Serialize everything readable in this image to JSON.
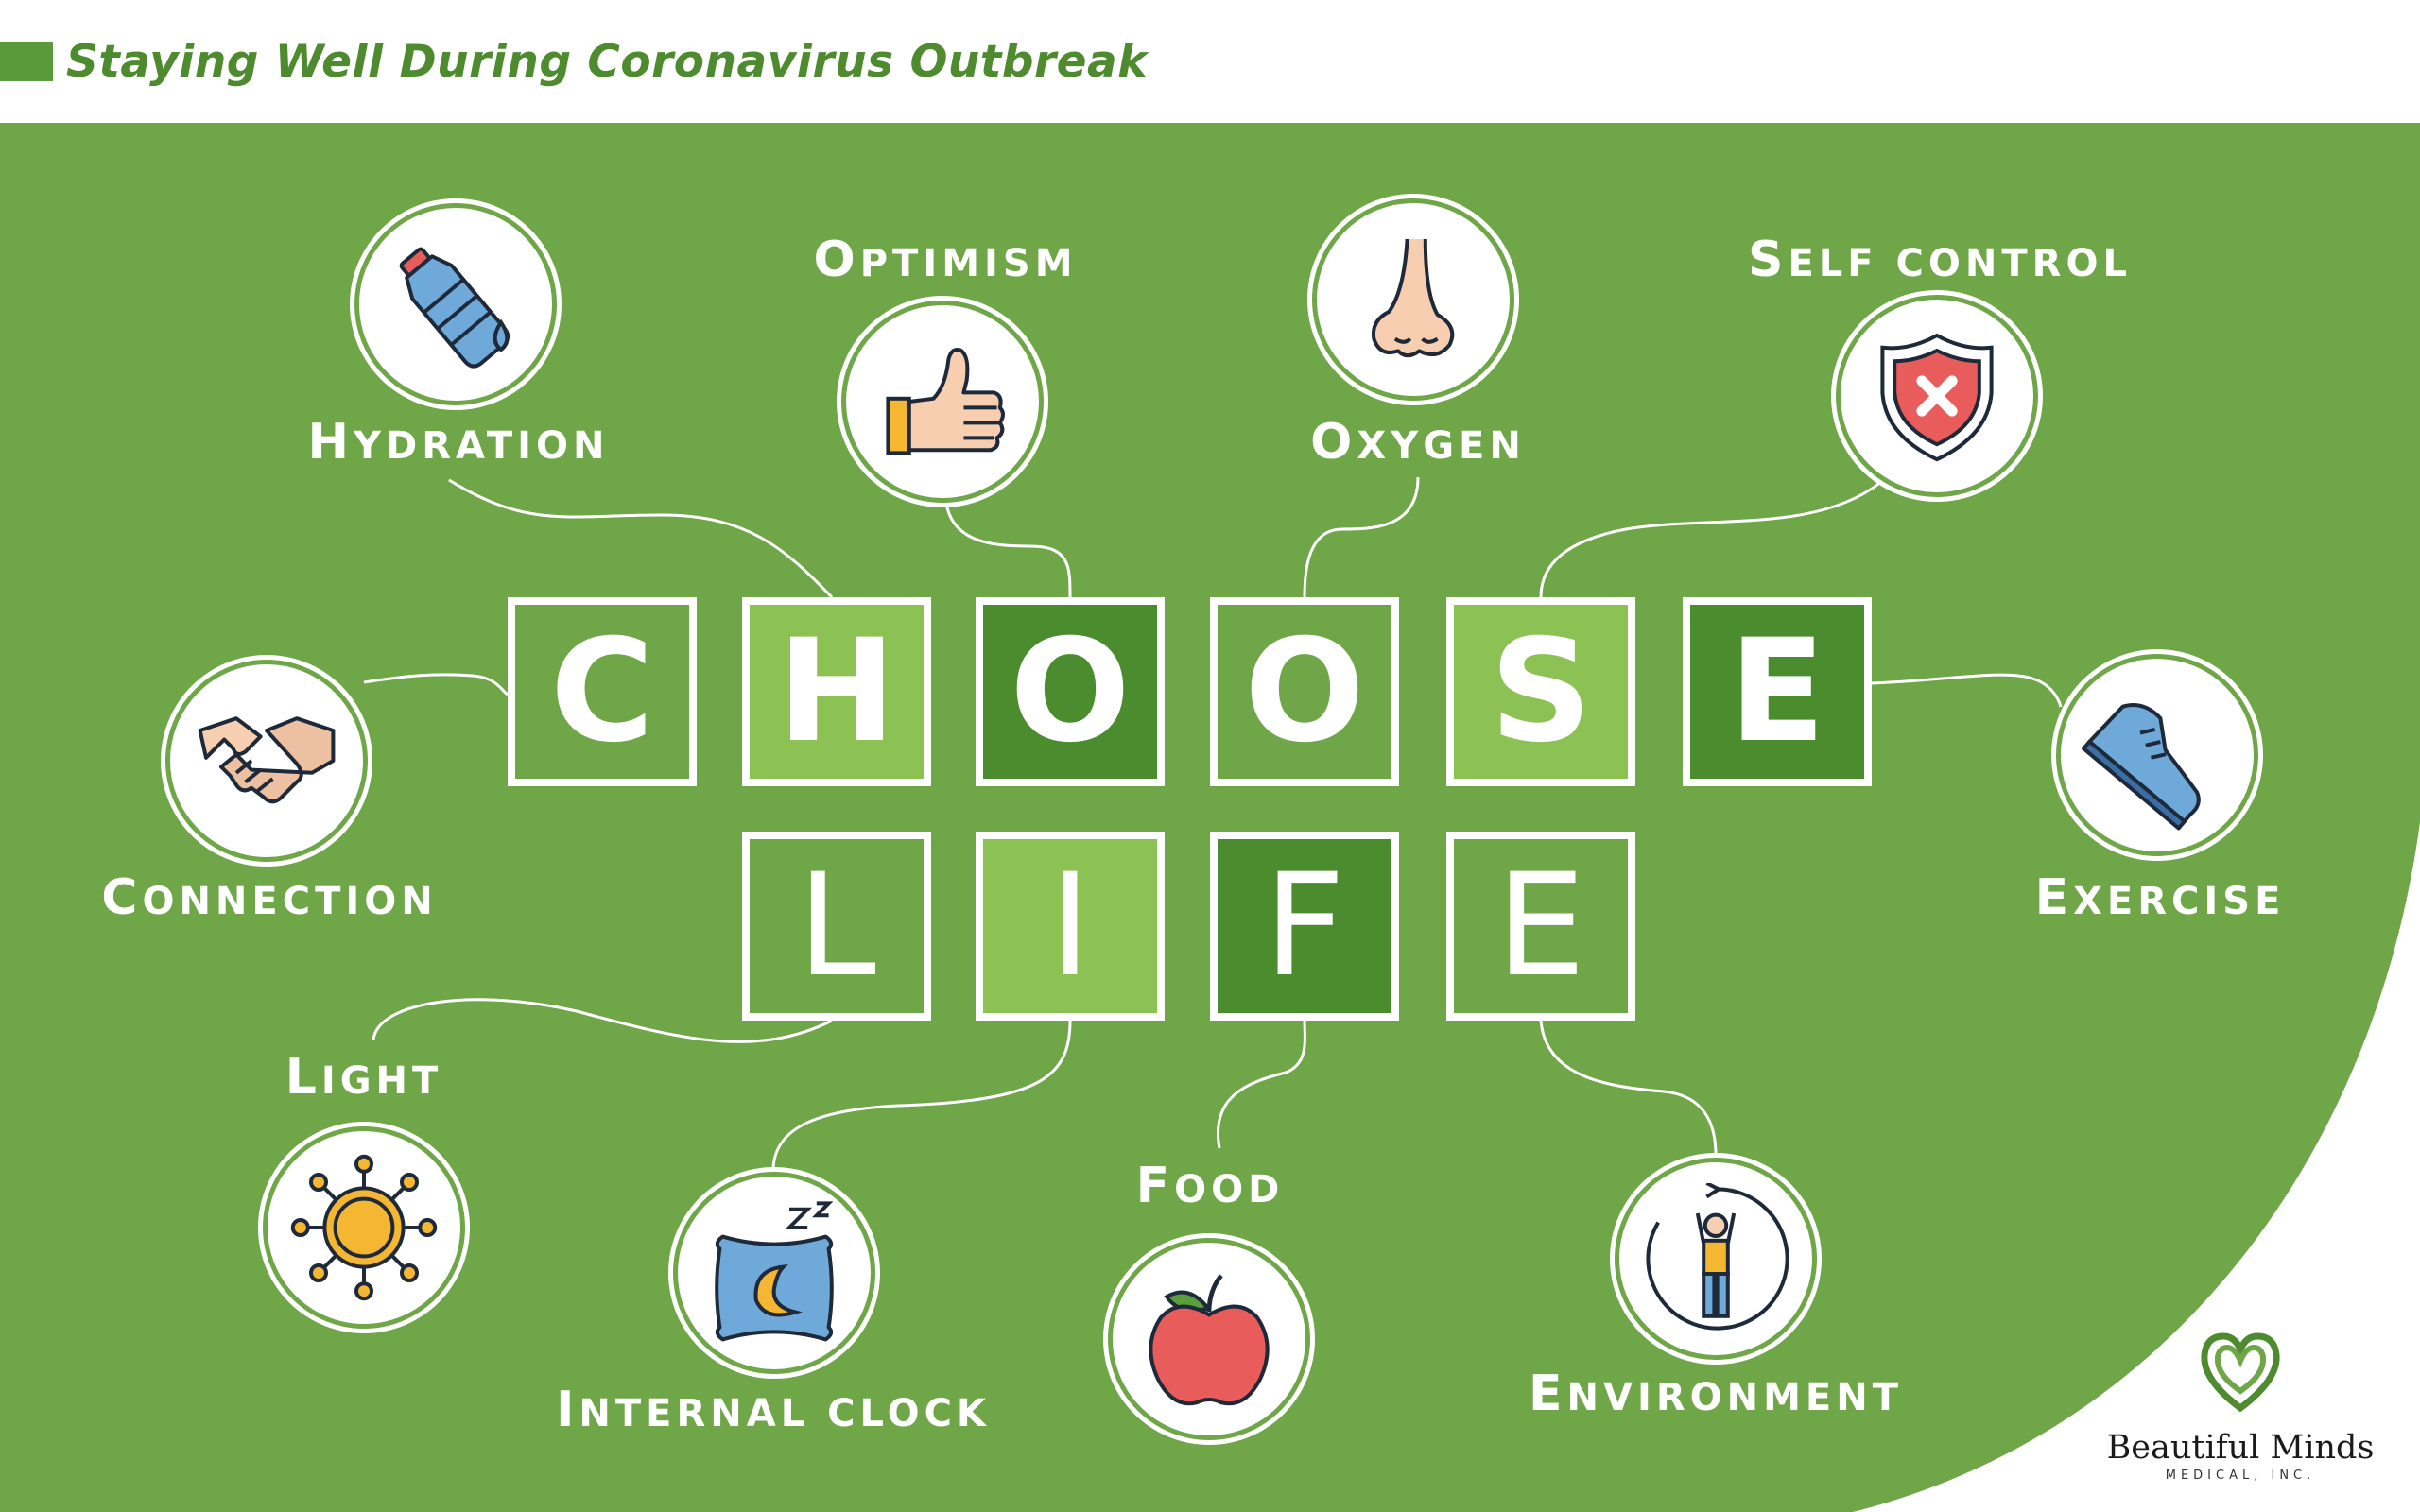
{
  "header": {
    "title": "Staying Well During Coronavirus Outbreak"
  },
  "colors": {
    "panel": "#6fa648",
    "tile_light": "#8cc153",
    "tile_dark": "#4a8c2e",
    "header_text": "#4e8a2e"
  },
  "choose": [
    "C",
    "H",
    "O",
    "O",
    "S",
    "E"
  ],
  "life": [
    "L",
    "I",
    "F",
    "E"
  ],
  "items": [
    {
      "label": "Hydration",
      "icon": "water-bottle-icon"
    },
    {
      "label": "Optimism",
      "icon": "thumbs-up-icon"
    },
    {
      "label": "Oxygen",
      "icon": "nose-icon"
    },
    {
      "label": "Self control",
      "icon": "shield-icon"
    },
    {
      "label": "Connection",
      "icon": "handshake-icon"
    },
    {
      "label": "Exercise",
      "icon": "shoe-icon"
    },
    {
      "label": "Light",
      "icon": "sun-icon"
    },
    {
      "label": "Internal clock",
      "icon": "sleep-pillow-icon"
    },
    {
      "label": "Food",
      "icon": "apple-icon"
    },
    {
      "label": "Environment",
      "icon": "person-cycle-icon"
    }
  ],
  "brand": {
    "name": "Beautiful Minds",
    "sub": "MEDICAL, INC.",
    "icon": "heart-logo-icon"
  }
}
